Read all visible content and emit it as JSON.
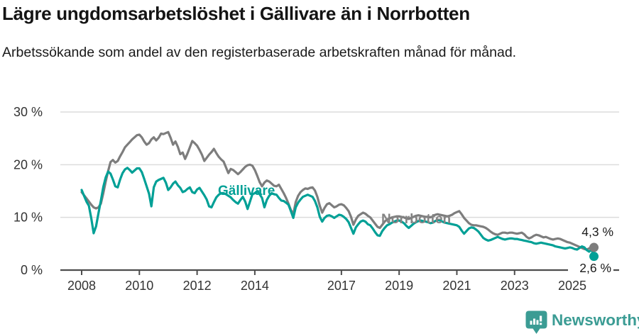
{
  "header": {
    "title": "Lägre ungdomsarbetslöshet i Gällivare än i Norrbotten",
    "subtitle": "Arbetssökande som andel av den registerbaserade arbetskraften månad för månad."
  },
  "chart_data": {
    "type": "line",
    "unit": "%",
    "x_start_year": 2008,
    "points_per_year": 12,
    "x_ticks": [
      2008,
      2010,
      2012,
      2014,
      2017,
      2019,
      2021,
      2023,
      2025
    ],
    "y_ticks": [
      0,
      10,
      20,
      30
    ],
    "y_tick_labels": [
      "0 %",
      "10 %",
      "20 %",
      "30 %"
    ],
    "y_max": 30,
    "grid": "horizontal",
    "legend_position": "inline-labels",
    "series": [
      {
        "id": "gallivare",
        "name": "Gällivare",
        "color": "#00a096",
        "end_label": "2,6 %",
        "end_value": 2.6,
        "values": [
          15.2,
          14.1,
          13.0,
          12.2,
          9.8,
          7.0,
          8.3,
          10.8,
          13.2,
          15.8,
          17.6,
          18.7,
          18.3,
          17.2,
          15.9,
          15.7,
          17.2,
          18.4,
          19.1,
          19.4,
          19.0,
          18.5,
          18.9,
          19.3,
          19.3,
          18.6,
          17.3,
          15.9,
          14.5,
          12.1,
          15.7,
          16.8,
          17.1,
          17.3,
          17.5,
          16.6,
          15.2,
          15.7,
          16.4,
          16.8,
          16.1,
          15.6,
          14.8,
          15.0,
          15.4,
          15.7,
          14.8,
          14.6,
          15.3,
          15.6,
          14.9,
          14.2,
          13.4,
          12.1,
          11.9,
          12.9,
          13.8,
          14.3,
          14.6,
          14.6,
          14.4,
          14.1,
          13.8,
          13.3,
          12.9,
          12.6,
          13.3,
          13.9,
          13.0,
          11.6,
          13.0,
          14.4,
          14.6,
          15.0,
          14.4,
          13.7,
          11.9,
          13.3,
          14.1,
          14.6,
          14.4,
          14.3,
          13.7,
          13.2,
          13.1,
          12.8,
          12.4,
          11.2,
          9.9,
          11.9,
          12.8,
          13.4,
          13.9,
          14.1,
          14.3,
          14.1,
          13.9,
          13.1,
          11.9,
          10.1,
          9.2,
          9.9,
          10.3,
          10.4,
          10.2,
          9.9,
          10.2,
          10.5,
          10.4,
          10.1,
          9.7,
          9.1,
          8.0,
          6.9,
          8.1,
          8.7,
          9.2,
          9.4,
          9.2,
          8.7,
          8.5,
          7.9,
          7.2,
          6.6,
          6.5,
          7.4,
          8.0,
          8.5,
          8.7,
          9.0,
          9.2,
          9.4,
          9.4,
          9.2,
          8.9,
          8.4,
          8.0,
          8.4,
          8.8,
          9.1,
          9.3,
          9.4,
          9.3,
          9.2,
          9.1,
          8.9,
          9.0,
          9.3,
          9.5,
          9.4,
          9.2,
          9.0,
          8.9,
          8.8,
          8.7,
          8.6,
          8.5,
          8.2,
          7.5,
          6.9,
          7.4,
          7.9,
          8.1,
          8.0,
          7.7,
          7.3,
          6.7,
          6.1,
          5.8,
          5.6,
          5.7,
          5.9,
          6.1,
          6.3,
          6.1,
          5.9,
          5.8,
          5.9,
          6.0,
          6.0,
          5.9,
          5.9,
          5.8,
          5.7,
          5.6,
          5.5,
          5.4,
          5.3,
          5.1,
          5.0,
          5.1,
          5.2,
          5.1,
          5.0,
          4.9,
          4.8,
          4.7,
          4.5,
          4.4,
          4.3,
          4.2,
          4.1,
          4.2,
          4.3,
          4.2,
          4.0,
          3.9,
          4.2,
          4.5,
          4.3,
          3.8,
          3.5,
          3.9,
          2.6
        ]
      },
      {
        "id": "norrbotten",
        "name": "Norrbotten",
        "color": "#7d7d7d",
        "end_label": "4,3 %",
        "end_value": 4.3,
        "values": [
          14.8,
          14.2,
          13.6,
          13.0,
          12.4,
          11.9,
          11.7,
          11.9,
          12.6,
          14.6,
          16.8,
          18.8,
          20.5,
          20.9,
          20.4,
          20.7,
          21.6,
          22.4,
          23.3,
          23.8,
          24.3,
          24.8,
          25.2,
          25.6,
          25.7,
          25.2,
          24.4,
          23.8,
          24.1,
          24.8,
          25.2,
          24.6,
          25.1,
          25.9,
          25.8,
          26.0,
          26.2,
          25.1,
          23.8,
          24.4,
          23.4,
          22.0,
          22.3,
          21.1,
          22.1,
          23.3,
          24.5,
          24.1,
          23.6,
          22.8,
          21.9,
          20.7,
          21.3,
          21.9,
          22.4,
          23.0,
          22.2,
          21.5,
          21.0,
          20.6,
          19.5,
          18.4,
          19.2,
          19.0,
          18.6,
          18.2,
          18.6,
          19.1,
          19.6,
          19.9,
          20.0,
          19.8,
          19.0,
          17.9,
          16.7,
          15.9,
          16.6,
          17.0,
          16.8,
          16.4,
          16.0,
          15.9,
          16.2,
          15.4,
          14.6,
          13.7,
          12.6,
          11.4,
          10.6,
          12.9,
          14.1,
          14.8,
          15.2,
          15.5,
          15.4,
          15.6,
          15.7,
          15.1,
          13.9,
          12.2,
          10.9,
          11.8,
          12.5,
          12.7,
          12.3,
          11.9,
          12.1,
          12.4,
          12.5,
          12.3,
          11.8,
          11.2,
          10.1,
          8.6,
          9.6,
          10.3,
          10.6,
          10.9,
          10.7,
          10.3,
          10.0,
          9.4,
          8.8,
          8.2,
          8.0,
          8.6,
          9.2,
          9.6,
          9.8,
          10.0,
          10.1,
          10.2,
          10.2,
          10.1,
          10.0,
          9.8,
          9.7,
          9.9,
          10.1,
          10.3,
          10.4,
          10.3,
          10.2,
          10.1,
          10.1,
          10.0,
          10.2,
          10.5,
          10.6,
          10.5,
          10.4,
          10.3,
          10.2,
          10.3,
          10.5,
          10.8,
          11.0,
          11.2,
          10.6,
          9.9,
          9.4,
          8.9,
          8.6,
          8.5,
          8.5,
          8.4,
          8.3,
          8.2,
          8.0,
          7.7,
          7.3,
          7.0,
          6.8,
          6.7,
          6.9,
          7.1,
          7.1,
          7.0,
          7.1,
          7.1,
          7.0,
          6.9,
          7.0,
          7.1,
          6.8,
          6.3,
          6.0,
          6.2,
          6.5,
          6.7,
          6.6,
          6.4,
          6.2,
          6.3,
          6.1,
          5.9,
          5.8,
          5.9,
          6.0,
          5.9,
          5.7,
          5.5,
          5.3,
          5.2,
          5.0,
          4.8,
          4.6,
          4.4,
          4.2,
          4.0,
          3.9,
          4.1,
          4.5,
          4.3
        ]
      }
    ]
  },
  "footer": {
    "brand": "Newsworthy"
  },
  "colors": {
    "accent_teal": "#00a096",
    "line_gray": "#7d7d7d",
    "logo_teal": "#3b9c94",
    "grid": "#dcdcdc",
    "axis": "#4d4d4d",
    "text_dark": "#1a1a1a"
  }
}
